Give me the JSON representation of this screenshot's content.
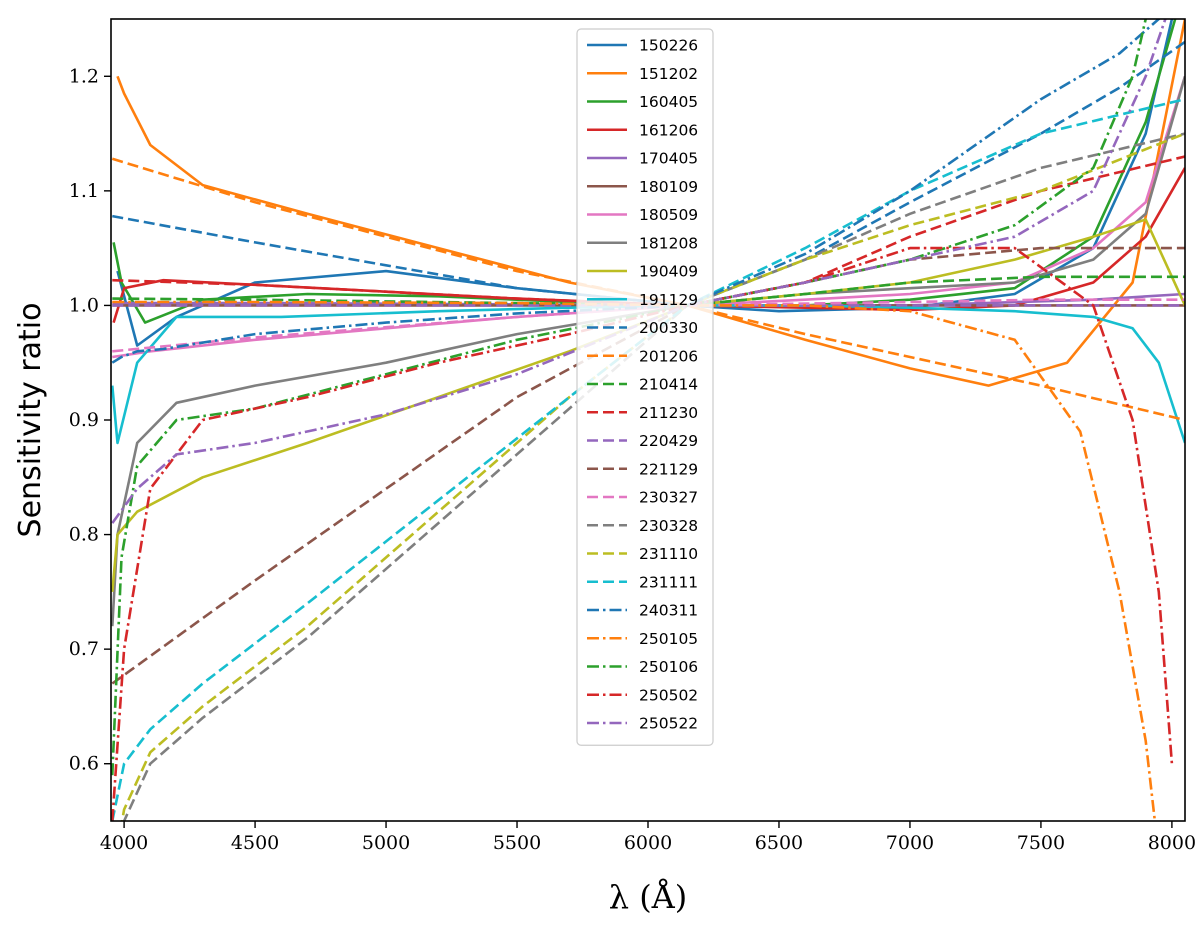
{
  "chart_data": {
    "type": "line",
    "title": "",
    "xlabel": "λ (Å)",
    "ylabel": "Sensitivity ratio",
    "xlim": [
      3950,
      8050
    ],
    "ylim": [
      0.55,
      1.25
    ],
    "xticks": [
      4000,
      4500,
      5000,
      5500,
      6000,
      6500,
      7000,
      7500,
      8000
    ],
    "yticks": [
      0.6,
      0.7,
      0.8,
      0.9,
      1.0,
      1.1,
      1.2
    ],
    "xtick_labels": [
      "4000",
      "4500",
      "5000",
      "5500",
      "6000",
      "6500",
      "7000",
      "7500",
      "8000"
    ],
    "ytick_labels": [
      "0.6",
      "0.7",
      "0.8",
      "0.9",
      "1.0",
      "1.1",
      "1.2"
    ],
    "grid": false,
    "legend_position": "top-center",
    "pivot_wavelength": 6150,
    "series": [
      {
        "name": "150226",
        "color": "#1f77b4",
        "style": "solid",
        "x": [
          3975,
          4050,
          4200,
          4500,
          5000,
          5500,
          6150,
          6500,
          7000,
          7400,
          7700,
          7900,
          8050
        ],
        "y": [
          1.03,
          0.965,
          0.99,
          1.02,
          1.03,
          1.015,
          1.0,
          0.995,
          0.998,
          1.01,
          1.05,
          1.15,
          1.3
        ]
      },
      {
        "name": "151202",
        "color": "#ff7f0e",
        "style": "solid",
        "x": [
          3975,
          4000,
          4100,
          4300,
          4700,
          5200,
          5700,
          6150,
          6600,
          7000,
          7300,
          7600,
          7850,
          8050
        ],
        "y": [
          1.2,
          1.185,
          1.14,
          1.105,
          1.08,
          1.05,
          1.02,
          1.0,
          0.97,
          0.945,
          0.93,
          0.95,
          1.02,
          1.25
        ]
      },
      {
        "name": "160405",
        "color": "#2ca02c",
        "style": "solid",
        "x": [
          3960,
          3990,
          4080,
          4300,
          4700,
          5200,
          5700,
          6150,
          6600,
          7000,
          7400,
          7700,
          7900,
          8050
        ],
        "y": [
          1.055,
          1.02,
          0.985,
          1.005,
          1.01,
          1.008,
          1.003,
          1.0,
          1.0,
          1.005,
          1.015,
          1.06,
          1.16,
          1.28
        ]
      },
      {
        "name": "161206",
        "color": "#d62728",
        "style": "solid",
        "x": [
          3960,
          4000,
          4150,
          4500,
          5000,
          5500,
          6150,
          6600,
          7000,
          7400,
          7700,
          7900,
          8050
        ],
        "y": [
          0.985,
          1.015,
          1.022,
          1.018,
          1.012,
          1.006,
          1.0,
          0.998,
          0.996,
          1.0,
          1.02,
          1.06,
          1.12
        ]
      },
      {
        "name": "170405",
        "color": "#9467bd",
        "style": "solid",
        "x": [
          3955,
          4500,
          5500,
          6150,
          7000,
          7700,
          8050
        ],
        "y": [
          1.002,
          1.002,
          1.001,
          1.0,
          1.0,
          1.005,
          1.01
        ]
      },
      {
        "name": "180109",
        "color": "#8c564b",
        "style": "solid",
        "x": [
          3955,
          4500,
          5500,
          6150,
          7000,
          7700,
          8050
        ],
        "y": [
          1.0,
          1.0,
          1.0,
          1.0,
          1.0,
          1.0,
          1.0
        ]
      },
      {
        "name": "180509",
        "color": "#e377c2",
        "style": "solid",
        "x": [
          3955,
          4100,
          4500,
          5000,
          5500,
          6150,
          6600,
          7000,
          7400,
          7700,
          7900,
          8050
        ],
        "y": [
          0.955,
          0.96,
          0.97,
          0.98,
          0.99,
          1.0,
          1.005,
          1.01,
          1.02,
          1.05,
          1.09,
          1.2
        ]
      },
      {
        "name": "181208",
        "color": "#7f7f7f",
        "style": "solid",
        "x": [
          3955,
          3975,
          4050,
          4200,
          4500,
          5000,
          5500,
          6150,
          6600,
          7000,
          7400,
          7700,
          7900,
          8050
        ],
        "y": [
          0.72,
          0.8,
          0.88,
          0.915,
          0.93,
          0.95,
          0.975,
          1.0,
          1.01,
          1.015,
          1.02,
          1.04,
          1.08,
          1.2
        ]
      },
      {
        "name": "190409",
        "color": "#bcbd22",
        "style": "solid",
        "x": [
          3955,
          3975,
          4050,
          4300,
          4700,
          5200,
          5700,
          6150,
          6600,
          7000,
          7400,
          7700,
          7900,
          8050
        ],
        "y": [
          0.75,
          0.8,
          0.82,
          0.85,
          0.88,
          0.92,
          0.96,
          1.0,
          1.01,
          1.02,
          1.04,
          1.06,
          1.075,
          1.0
        ]
      },
      {
        "name": "191129",
        "color": "#17becf",
        "style": "solid",
        "x": [
          3955,
          3975,
          4050,
          4200,
          4600,
          5200,
          5700,
          6150,
          6600,
          7000,
          7400,
          7700,
          7850,
          7950,
          8050
        ],
        "y": [
          0.93,
          0.88,
          0.95,
          0.99,
          0.99,
          0.995,
          0.998,
          1.0,
          1.0,
          0.998,
          0.995,
          0.99,
          0.98,
          0.95,
          0.88
        ]
      },
      {
        "name": "200330",
        "color": "#1f77b4",
        "style": "dashed",
        "x": [
          3955,
          4500,
          5000,
          5500,
          6150,
          6600,
          7000,
          7500,
          7800,
          8050
        ],
        "y": [
          1.078,
          1.055,
          1.035,
          1.015,
          1.0,
          1.04,
          1.09,
          1.15,
          1.19,
          1.23
        ]
      },
      {
        "name": "201206",
        "color": "#ff7f0e",
        "style": "dashed",
        "x": [
          3955,
          4500,
          5000,
          5500,
          6150,
          6600,
          7000,
          7500,
          8050
        ],
        "y": [
          1.128,
          1.09,
          1.06,
          1.03,
          1.0,
          0.975,
          0.955,
          0.93,
          0.9
        ]
      },
      {
        "name": "210414",
        "color": "#2ca02c",
        "style": "dashed",
        "x": [
          3955,
          4500,
          5500,
          6150,
          6600,
          7000,
          7500,
          8050
        ],
        "y": [
          1.006,
          1.005,
          1.002,
          1.0,
          1.01,
          1.02,
          1.025,
          1.025
        ]
      },
      {
        "name": "211230",
        "color": "#d62728",
        "style": "dashed",
        "x": [
          3955,
          4500,
          5500,
          6150,
          6600,
          7000,
          7500,
          8050
        ],
        "y": [
          1.022,
          1.018,
          1.006,
          1.0,
          1.02,
          1.06,
          1.1,
          1.13
        ]
      },
      {
        "name": "220429",
        "color": "#9467bd",
        "style": "dashed",
        "x": [
          3955,
          4500,
          5500,
          6150,
          7000,
          7500,
          8050
        ],
        "y": [
          1.0,
          1.0,
          1.0,
          1.0,
          1.0,
          1.0,
          1.0
        ]
      },
      {
        "name": "221129",
        "color": "#8c564b",
        "style": "dashed",
        "x": [
          3955,
          4500,
          5500,
          6150,
          6600,
          7000,
          7500,
          8050
        ],
        "y": [
          0.67,
          0.76,
          0.92,
          1.0,
          1.02,
          1.04,
          1.05,
          1.05
        ]
      },
      {
        "name": "230327",
        "color": "#e377c2",
        "style": "dashed",
        "x": [
          3955,
          4500,
          5500,
          6150,
          7000,
          7500,
          8050
        ],
        "y": [
          0.96,
          0.972,
          0.99,
          1.0,
          1.003,
          1.005,
          1.005
        ]
      },
      {
        "name": "230328",
        "color": "#7f7f7f",
        "style": "dashed",
        "x": [
          3955,
          4000,
          4100,
          4300,
          4700,
          5200,
          5700,
          6150,
          6600,
          7000,
          7500,
          8050
        ],
        "y": [
          0.45,
          0.55,
          0.6,
          0.64,
          0.71,
          0.81,
          0.91,
          1.0,
          1.04,
          1.08,
          1.12,
          1.15
        ]
      },
      {
        "name": "231110",
        "color": "#bcbd22",
        "style": "dashed",
        "x": [
          3955,
          4000,
          4100,
          4300,
          4700,
          5200,
          5700,
          6150,
          6600,
          7000,
          7500,
          8050
        ],
        "y": [
          0.5,
          0.56,
          0.61,
          0.65,
          0.72,
          0.82,
          0.92,
          1.0,
          1.04,
          1.07,
          1.1,
          1.15
        ]
      },
      {
        "name": "231111",
        "color": "#17becf",
        "style": "dashed",
        "x": [
          3955,
          4000,
          4100,
          4300,
          4700,
          5200,
          5700,
          6150,
          6600,
          7000,
          7500,
          8050
        ],
        "y": [
          0.55,
          0.6,
          0.63,
          0.67,
          0.74,
          0.83,
          0.92,
          1.0,
          1.05,
          1.1,
          1.15,
          1.18
        ]
      },
      {
        "name": "240311",
        "color": "#1f77b4",
        "style": "dashdot",
        "x": [
          3955,
          3990,
          4050,
          4150,
          4500,
          5000,
          5500,
          6150,
          6600,
          7000,
          7500,
          7800,
          8000,
          8050
        ],
        "y": [
          0.95,
          0.955,
          0.96,
          0.962,
          0.975,
          0.985,
          0.993,
          1.0,
          1.045,
          1.1,
          1.18,
          1.22,
          1.26,
          1.3
        ]
      },
      {
        "name": "250105",
        "color": "#ff7f0e",
        "style": "dashdot",
        "x": [
          3955,
          4500,
          5500,
          6150,
          6600,
          7000,
          7400,
          7650,
          7800,
          7900,
          7960
        ],
        "y": [
          1.003,
          1.003,
          1.002,
          1.0,
          1.0,
          0.995,
          0.97,
          0.89,
          0.75,
          0.62,
          0.5
        ]
      },
      {
        "name": "250106",
        "color": "#2ca02c",
        "style": "dashdot",
        "x": [
          3955,
          3990,
          4050,
          4200,
          4500,
          5000,
          5500,
          6150,
          6600,
          7000,
          7400,
          7700,
          7850,
          7950
        ],
        "y": [
          0.59,
          0.78,
          0.86,
          0.9,
          0.91,
          0.94,
          0.97,
          1.0,
          1.02,
          1.04,
          1.07,
          1.12,
          1.2,
          1.3
        ]
      },
      {
        "name": "250502",
        "color": "#d62728",
        "style": "dashdot",
        "x": [
          3955,
          4000,
          4100,
          4300,
          4700,
          5200,
          5700,
          6150,
          6600,
          7000,
          7400,
          7700,
          7850,
          7950,
          8000
        ],
        "y": [
          0.55,
          0.7,
          0.84,
          0.9,
          0.92,
          0.95,
          0.975,
          1.0,
          1.02,
          1.05,
          1.05,
          1.0,
          0.9,
          0.75,
          0.6
        ]
      },
      {
        "name": "250522",
        "color": "#9467bd",
        "style": "dashdot",
        "x": [
          3955,
          4050,
          4200,
          4500,
          5000,
          5500,
          6150,
          6600,
          7000,
          7400,
          7700,
          7900,
          8050
        ],
        "y": [
          0.81,
          0.84,
          0.87,
          0.88,
          0.905,
          0.94,
          1.0,
          1.02,
          1.04,
          1.06,
          1.1,
          1.2,
          1.3
        ]
      }
    ]
  }
}
